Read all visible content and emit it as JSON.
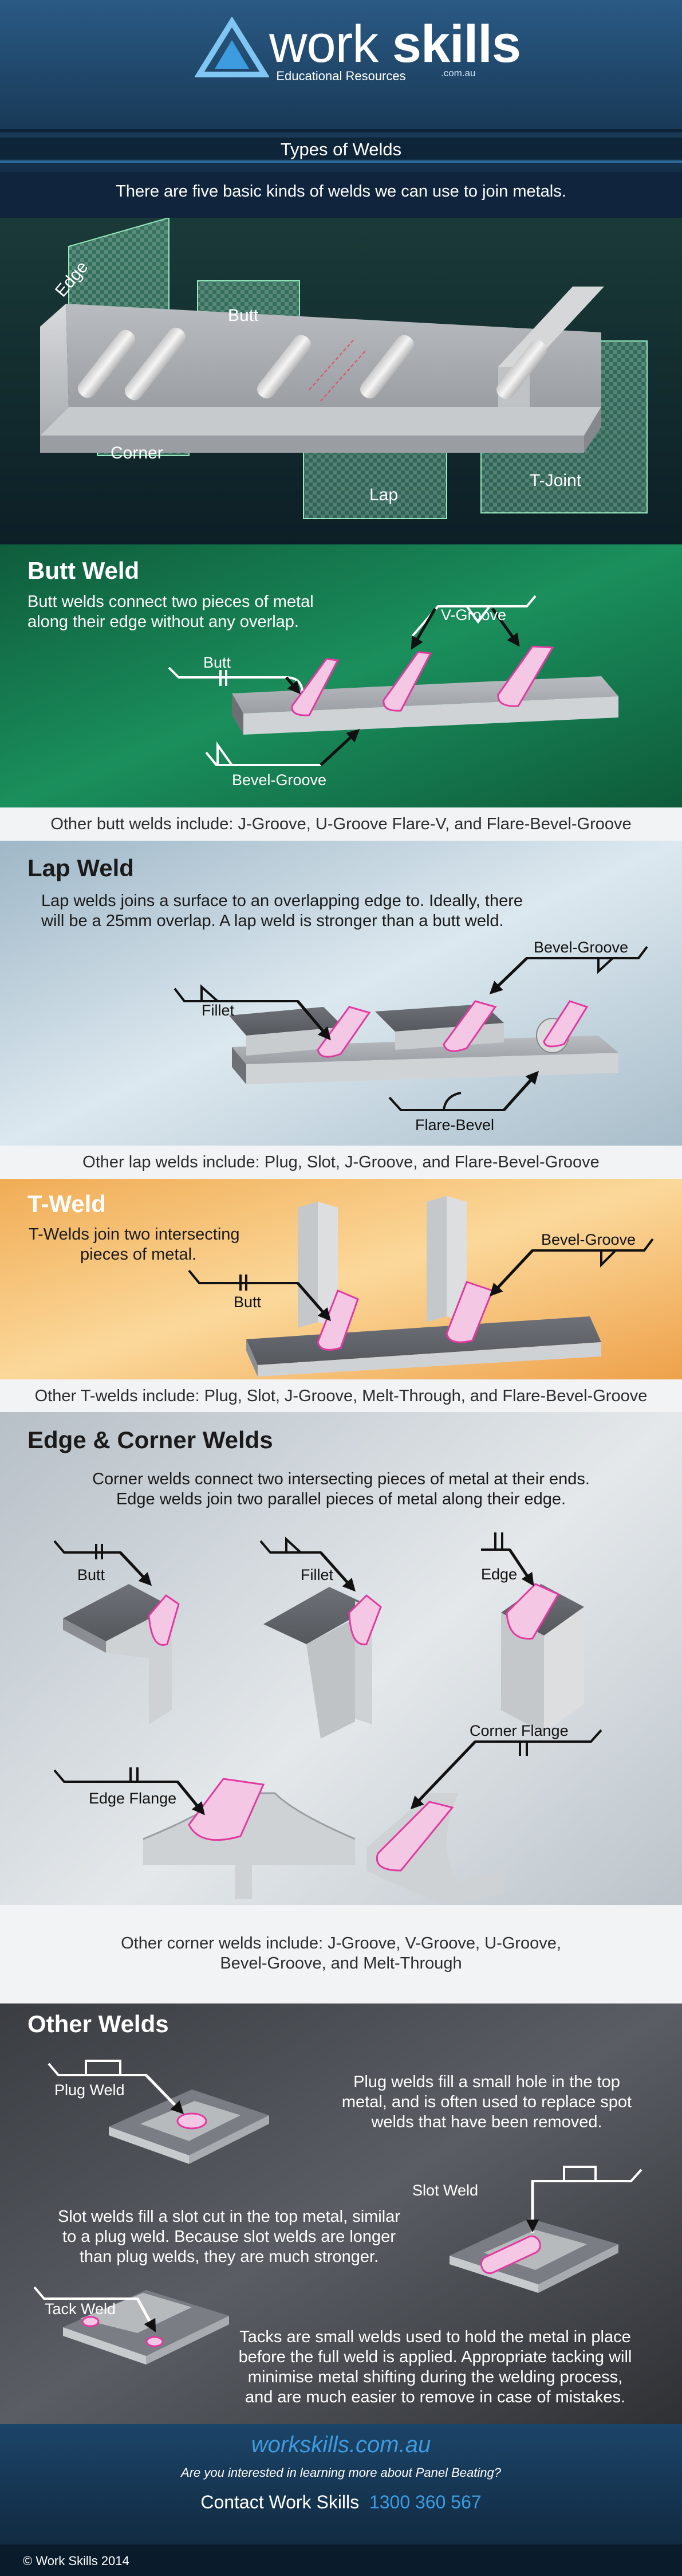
{
  "header": {
    "brand_work": "work",
    "brand_skills": "skills",
    "brand_domain": ".com.au",
    "tagline": "Educational Resources",
    "page_title": "Types of Welds"
  },
  "intro": {
    "text": "There are five basic kinds of welds we can use to join metals.",
    "labels": {
      "edge": "Edge",
      "butt": "Butt",
      "corner": "Corner",
      "lap": "Lap",
      "tjoint": "T-Joint"
    }
  },
  "butt": {
    "title": "Butt Weld",
    "desc_1": "Butt welds connect two pieces of metal",
    "desc_2": "along their edge without any overlap.",
    "label_butt": "Butt",
    "label_vgroove": "V-Groove",
    "label_bevel": "Bevel-Groove",
    "footer": "Other butt welds include: J-Groove, U-Groove Flare-V, and Flare-Bevel-Groove"
  },
  "lap": {
    "title": "Lap Weld",
    "desc_1": "Lap welds joins a surface to an overlapping edge to. Ideally, there",
    "desc_2": "will be a 25mm overlap. A lap weld is stronger than a butt weld.",
    "label_fillet": "Fillet",
    "label_bevel": "Bevel-Groove",
    "label_flare": "Flare-Bevel",
    "footer": "Other lap welds include: Plug, Slot, J-Groove, and Flare-Bevel-Groove"
  },
  "tweld": {
    "title": "T-Weld",
    "desc_1": "T-Welds join two intersecting",
    "desc_2": "pieces of metal.",
    "label_butt": "Butt",
    "label_bevel": "Bevel-Groove",
    "footer": "Other T-welds include: Plug, Slot, J-Groove, Melt-Through, and Flare-Bevel-Groove"
  },
  "edge": {
    "title": "Edge & Corner Welds",
    "desc_1": "Corner welds connect two intersecting pieces of metal at their ends.",
    "desc_2": "Edge welds join two parallel pieces of metal along their edge.",
    "label_butt": "Butt",
    "label_fillet": "Fillet",
    "label_edge": "Edge",
    "label_edge_flange": "Edge Flange",
    "label_corner_flange": "Corner Flange",
    "footer_1": "Other corner welds include: J-Groove, V-Groove, U-Groove,",
    "footer_2": "Bevel-Groove, and Melt-Through"
  },
  "other": {
    "title": "Other Welds",
    "plug_label": "Plug Weld",
    "plug_1": "Plug welds fill a small hole in the top",
    "plug_2": "metal, and is often used to replace spot",
    "plug_3": "welds that have been removed.",
    "slot_label": "Slot Weld",
    "slot_1": "Slot welds fill a slot cut in the top metal, similar",
    "slot_2": "to a plug weld. Because slot welds are longer",
    "slot_3": "than plug welds, they are much stronger.",
    "tack_label": "Tack Weld",
    "tack_1": "Tacks are small welds used to hold the metal in place",
    "tack_2": "before the full weld is applied. Appropriate tacking will",
    "tack_3": "minimise metal shifting during the welding process,",
    "tack_4": "and are much easier to remove in case of mistakes."
  },
  "footer": {
    "url": "workskills.com.au",
    "question": "Are you interested in learning more about Panel Beating?",
    "contact": "Contact Work Skills",
    "phone": "1300 360 567",
    "copyright": "© Work Skills 2014"
  },
  "colors": {
    "navy": "#0f2740",
    "green": "#14734a",
    "weld": "#e877c8",
    "metal": "#8f9399",
    "accent_blue": "#3d9be0"
  }
}
